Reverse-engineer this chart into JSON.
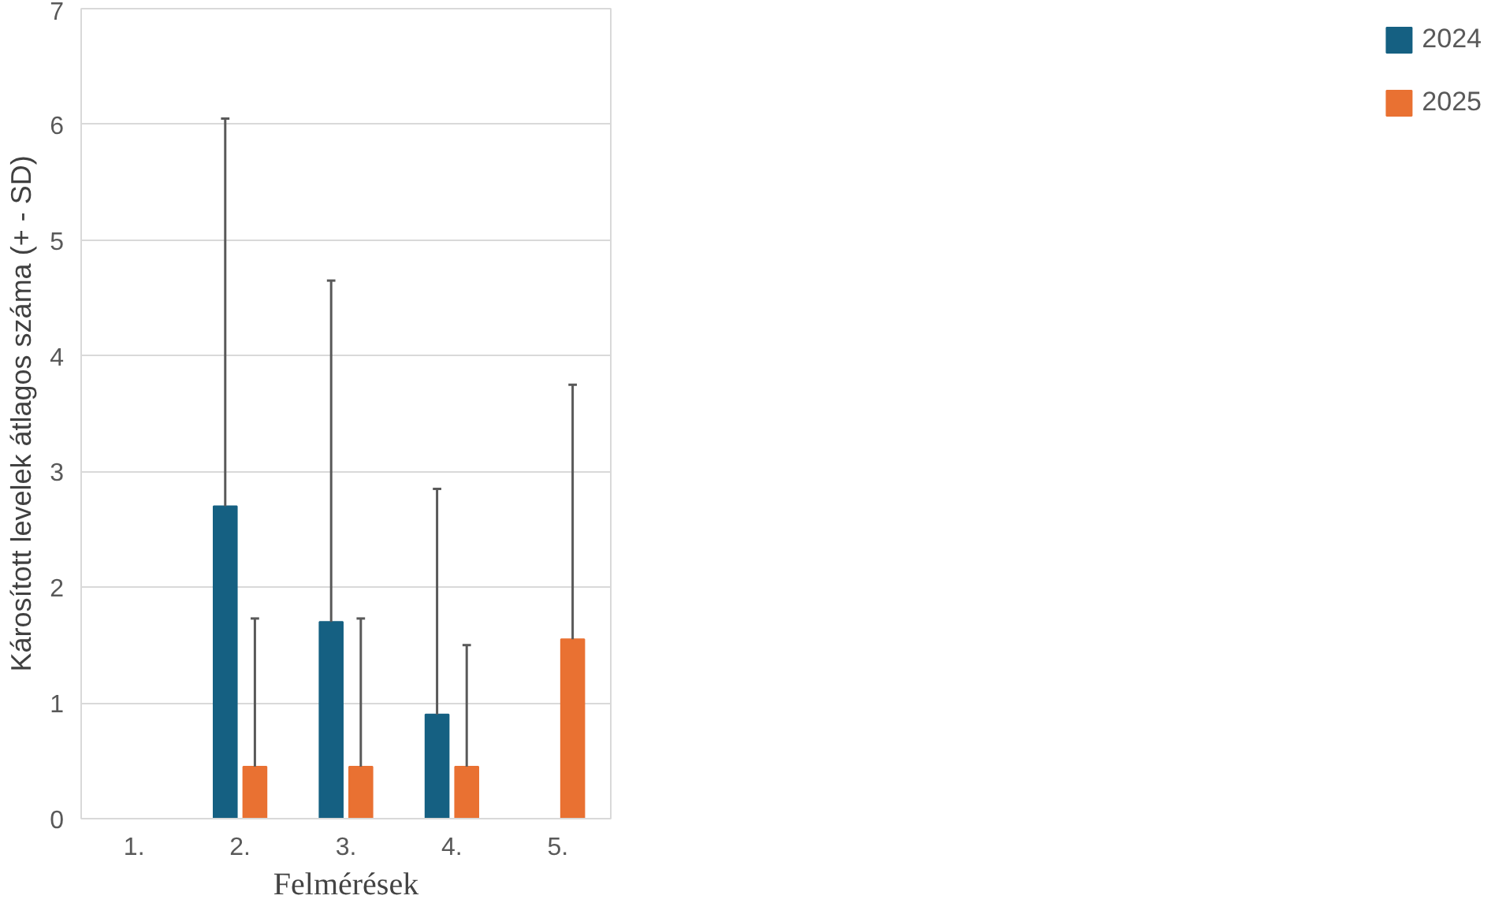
{
  "chart_data": {
    "type": "bar",
    "xlabel": "Felmérések",
    "ylabel": "Károsított levelek átlagos száma (+ - SD)",
    "categories": [
      "1.",
      "2.",
      "3.",
      "4.",
      "5."
    ],
    "series": [
      {
        "name": "2024",
        "color": "#156082",
        "values": [
          0,
          2.7,
          1.7,
          0.9,
          0
        ],
        "errors": [
          null,
          [
            2.7,
            6.05
          ],
          [
            1.7,
            4.65
          ],
          [
            0.9,
            2.85
          ],
          null
        ]
      },
      {
        "name": "2025",
        "color": "#e97132",
        "values": [
          0,
          0.45,
          0.45,
          0.45,
          1.55
        ],
        "errors": [
          null,
          [
            0.45,
            1.73
          ],
          [
            0.45,
            1.73
          ],
          [
            0.45,
            1.5
          ],
          [
            1.55,
            3.75
          ]
        ]
      }
    ],
    "ylim": [
      0,
      7
    ],
    "yticks": [
      0,
      1,
      2,
      3,
      4,
      5,
      6,
      7
    ],
    "grid": "y",
    "legend": "right"
  }
}
